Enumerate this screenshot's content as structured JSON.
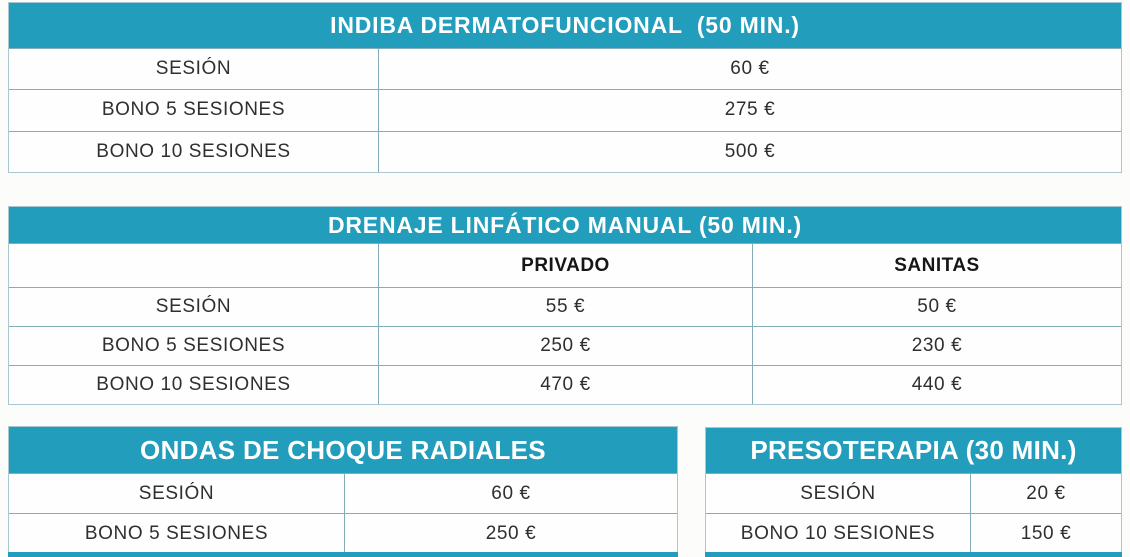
{
  "theme": {
    "teal": "#229dbb",
    "border_inner": "#84adb8",
    "border_outer": "#a9c7cf",
    "text": "#2f2f2f",
    "header_text": "#ffffff"
  },
  "tables": [
    {
      "id": "indiba",
      "title": "INDIBA DERMATOFUNCIONAL  (50 MIN.)",
      "rows": [
        {
          "label": "SESIÓN",
          "values": [
            "60 €"
          ]
        },
        {
          "label": "BONO 5 SESIONES",
          "values": [
            "275 €"
          ]
        },
        {
          "label": "BONO 10 SESIONES",
          "values": [
            "500 €"
          ]
        }
      ]
    },
    {
      "id": "drenaje-linfatico",
      "title": "DRENAJE LINFÁTICO MANUAL (50 MIN.)",
      "columns": [
        "PRIVADO",
        "SANITAS"
      ],
      "rows": [
        {
          "label": "SESIÓN",
          "values": [
            "55 €",
            "50 €"
          ]
        },
        {
          "label": "BONO 5 SESIONES",
          "values": [
            "250 €",
            "230 €"
          ]
        },
        {
          "label": "BONO 10 SESIONES",
          "values": [
            "470 €",
            "440 €"
          ]
        }
      ]
    },
    {
      "id": "ondas-de-choque",
      "title": "ONDAS DE CHOQUE RADIALES",
      "rows": [
        {
          "label": "SESIÓN",
          "values": [
            "60 €"
          ]
        },
        {
          "label": "BONO 5 SESIONES",
          "values": [
            "250 €"
          ]
        }
      ]
    },
    {
      "id": "presoterapia",
      "title": "PRESOTERAPIA (30 MIN.)",
      "rows": [
        {
          "label": "SESIÓN",
          "values": [
            "20 €"
          ]
        },
        {
          "label": "BONO 10 SESIONES",
          "values": [
            "150 €"
          ]
        }
      ]
    }
  ]
}
